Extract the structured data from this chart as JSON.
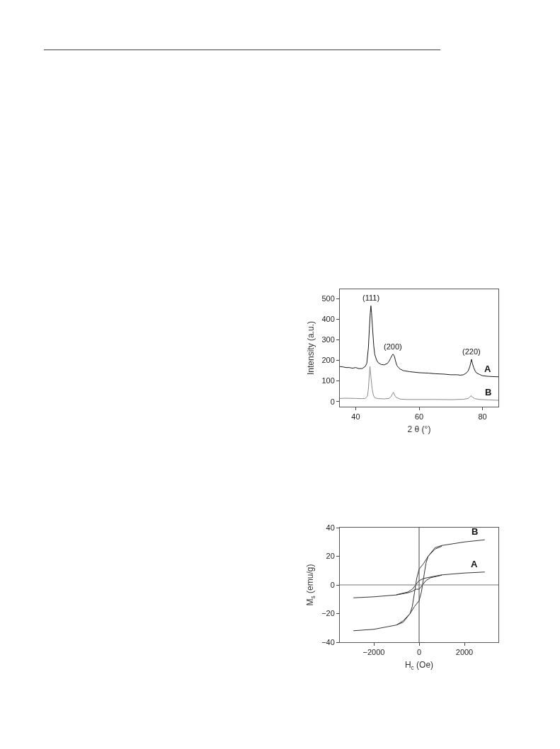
{
  "chart_data": [
    {
      "type": "line",
      "xlabel": "2 θ (°)",
      "ylabel": "Intensity (a.u.)",
      "xlim": [
        35,
        85
      ],
      "ylim": [
        -25,
        545
      ],
      "xticks": [
        40,
        60,
        80
      ],
      "yticks": [
        0,
        100,
        200,
        300,
        400,
        500
      ],
      "grid": false,
      "legend": false,
      "marker": "none",
      "line_style": "solid",
      "annotations": [
        {
          "text": "(111)",
          "x": 44.8,
          "y": 465
        },
        {
          "text": "(200)",
          "x": 51.8,
          "y": 230
        },
        {
          "text": "(220)",
          "x": 76.5,
          "y": 205
        }
      ],
      "series": [
        {
          "name": "A",
          "color": "#1a1a1a",
          "x": [
            35,
            36,
            37,
            38,
            39,
            40,
            41,
            42,
            43,
            43.5,
            44,
            44.3,
            44.6,
            44.8,
            45,
            45.3,
            45.7,
            46,
            46.5,
            47,
            48,
            49,
            50,
            50.5,
            51,
            51.5,
            51.8,
            52.2,
            52.6,
            53,
            53.5,
            54,
            55,
            57,
            60,
            63,
            65,
            68,
            70,
            72,
            73,
            74,
            75,
            75.5,
            76,
            76.3,
            76.5,
            76.8,
            77.2,
            77.6,
            78,
            79,
            80,
            82,
            85
          ],
          "values": [
            170,
            168,
            165,
            165,
            162,
            165,
            160,
            160,
            170,
            185,
            260,
            350,
            430,
            465,
            430,
            360,
            270,
            230,
            205,
            190,
            180,
            178,
            185,
            195,
            210,
            225,
            230,
            220,
            195,
            175,
            165,
            158,
            150,
            145,
            140,
            138,
            135,
            133,
            130,
            130,
            128,
            130,
            140,
            150,
            170,
            190,
            205,
            185,
            165,
            150,
            140,
            132,
            125,
            122,
            120
          ]
        },
        {
          "name": "B",
          "color": "#8a8a8a",
          "x": [
            35,
            37,
            40,
            42,
            43,
            43.7,
            44,
            44.3,
            44.5,
            44.8,
            45.2,
            45.6,
            46,
            47,
            49,
            50.5,
            51.2,
            51.6,
            51.9,
            52.3,
            52.8,
            54,
            56,
            60,
            65,
            70,
            74,
            75.5,
            76,
            76.3,
            76.8,
            77.5,
            79,
            82,
            85
          ],
          "values": [
            15,
            16,
            15,
            14,
            15,
            25,
            60,
            130,
            170,
            120,
            60,
            30,
            18,
            14,
            13,
            15,
            25,
            38,
            45,
            30,
            20,
            12,
            10,
            10,
            10,
            9,
            11,
            15,
            22,
            28,
            22,
            14,
            10,
            8,
            6
          ]
        }
      ]
    },
    {
      "type": "line",
      "xlabel": "H$_{c}$ (Oe)",
      "ylabel": "M$_{s}$ (emu/g)",
      "xlim": [
        -3500,
        3500
      ],
      "ylim": [
        -40,
        40
      ],
      "xticks": [
        -2000,
        0,
        2000
      ],
      "yticks": [
        -40,
        -20,
        0,
        20,
        40
      ],
      "grid": false,
      "legend": false,
      "marker": "none",
      "line_style": "solid",
      "ref_lines": [
        {
          "axis": "x",
          "value": 0,
          "color": "#444444"
        },
        {
          "axis": "y",
          "value": 0,
          "color": "#777777"
        }
      ],
      "series": [
        {
          "name": "B",
          "color": "#333333",
          "x": [
            -1000,
            -700,
            -400,
            -300,
            -200,
            -100,
            0,
            200,
            400,
            700,
            1000,
            2000,
            2900
          ],
          "values": [
            -28,
            -25,
            -20,
            -15,
            -5,
            5,
            11,
            15,
            20,
            26,
            27.5,
            30,
            31.5
          ]
        },
        {
          "color": "#333333",
          "x": [
            -2900,
            -2000,
            -1000,
            -700,
            -400,
            -200,
            0,
            100,
            200,
            300,
            400,
            700,
            1000
          ],
          "values": [
            -32,
            -31,
            -28,
            -26,
            -20,
            -15,
            -11,
            -5,
            5,
            15,
            20,
            25,
            27
          ]
        },
        {
          "name": "A",
          "color": "#333333",
          "x": [
            -1000,
            -500,
            -300,
            -150,
            0,
            200,
            500,
            1000,
            2000,
            2900
          ],
          "values": [
            -6.8,
            -5,
            -3,
            0,
            3,
            4.5,
            5.5,
            7,
            8.3,
            9
          ]
        },
        {
          "color": "#333333",
          "x": [
            -2900,
            -2000,
            -1000,
            -500,
            -300,
            -150,
            0,
            150,
            300,
            500,
            1000
          ],
          "values": [
            -9,
            -8.3,
            -7,
            -5.5,
            -4.5,
            -3,
            -3,
            0,
            3,
            5,
            6.8
          ]
        }
      ]
    }
  ]
}
